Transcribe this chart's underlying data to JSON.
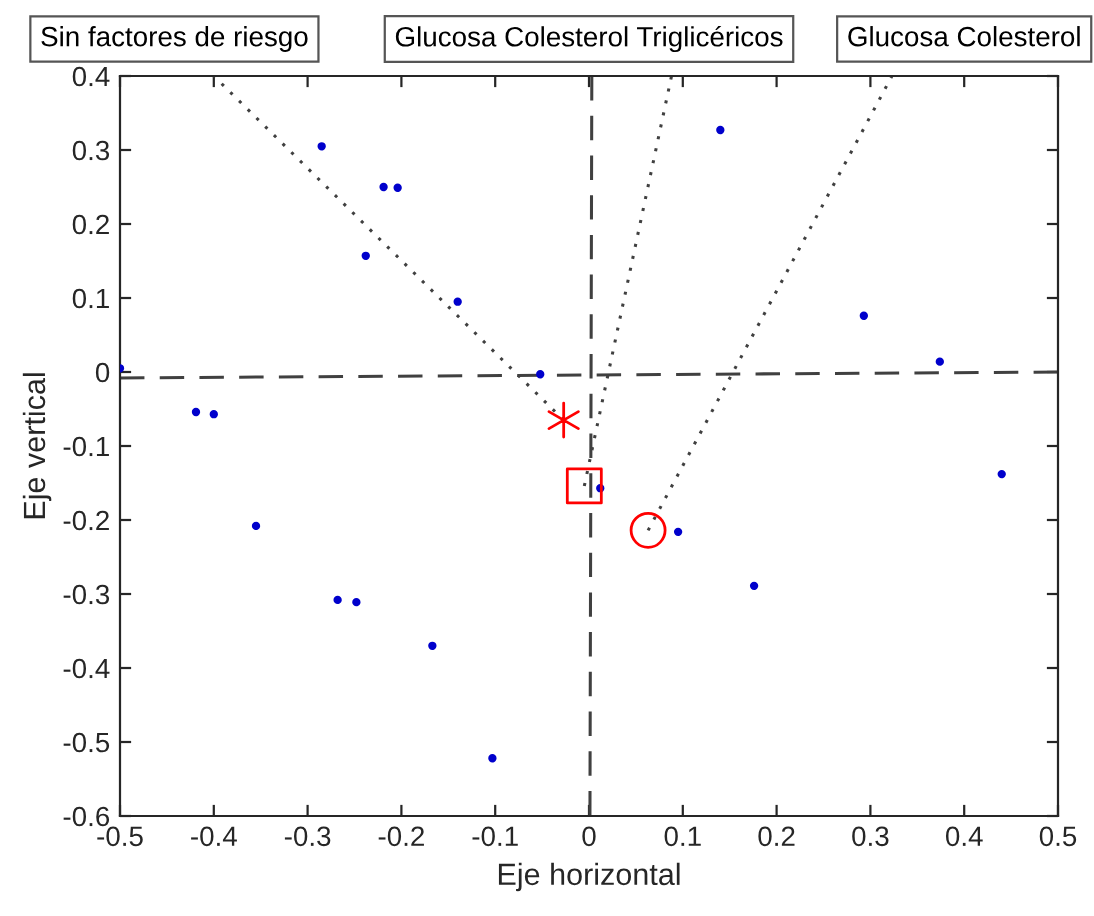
{
  "chart_data": {
    "type": "scatter",
    "xlabel": "Eje horizontal",
    "ylabel": "Eje vertical",
    "xlim": [
      -0.5,
      0.5
    ],
    "ylim": [
      -0.6,
      0.4
    ],
    "xticks": [
      -0.5,
      -0.4,
      -0.3,
      -0.2,
      -0.1,
      0,
      0.1,
      0.2,
      0.3,
      0.4,
      0.5
    ],
    "yticks": [
      -0.6,
      -0.5,
      -0.4,
      -0.3,
      -0.2,
      -0.1,
      0,
      0.1,
      0.2,
      0.3,
      0.4
    ],
    "grid": false,
    "legend": false,
    "annotations": [
      "Sin factores de riesgo",
      "Glucosa Colesterol Triglicéricos",
      "Glucosa Colesterol"
    ],
    "series": [
      {
        "type": "line",
        "color": "#404040",
        "line_style": "dashed",
        "marker": "none",
        "x": [
          -0.5,
          0.5
        ],
        "values": [
          -0.008,
          0.0
        ]
      },
      {
        "type": "line",
        "color": "#404040",
        "line_style": "dashed",
        "marker": "none",
        "x": [
          0.003,
          0.001
        ],
        "values": [
          0.4,
          -0.6
        ]
      },
      {
        "type": "line",
        "color": "#404040",
        "line_style": "dotted",
        "marker": "none",
        "x": [
          -0.027,
          -0.4
        ],
        "values": [
          -0.065,
          0.4
        ]
      },
      {
        "type": "line",
        "color": "#404040",
        "line_style": "dotted",
        "marker": "none",
        "x": [
          -0.005,
          0.088
        ],
        "values": [
          -0.154,
          0.4
        ]
      },
      {
        "type": "line",
        "color": "#404040",
        "line_style": "dotted",
        "marker": "none",
        "x": [
          0.063,
          0.323
        ],
        "values": [
          -0.214,
          0.4
        ]
      },
      {
        "color": "#0000cc",
        "marker": "circle",
        "x": [
          -0.5,
          -0.285,
          -0.219,
          -0.204,
          -0.238,
          -0.14,
          -0.052,
          0.14,
          0.293,
          0.374,
          -0.419,
          -0.4,
          -0.355,
          -0.268,
          -0.248,
          -0.167,
          -0.103,
          0.012,
          0.095,
          0.176,
          0.44
        ],
        "values": [
          0.005,
          0.305,
          0.25,
          0.249,
          0.157,
          0.095,
          -0.003,
          0.327,
          0.076,
          0.014,
          -0.054,
          -0.057,
          -0.208,
          -0.308,
          -0.311,
          -0.37,
          -0.522,
          -0.157,
          -0.216,
          -0.289,
          -0.138
        ]
      },
      {
        "color": "#ff0000",
        "marker": "cross",
        "x": [
          -0.027
        ],
        "values": [
          -0.065
        ]
      },
      {
        "color": "#ff0000",
        "marker": "square",
        "x": [
          -0.005
        ],
        "values": [
          -0.154
        ]
      },
      {
        "color": "#ff0000",
        "marker": "circle",
        "x": [
          0.063
        ],
        "values": [
          -0.214
        ]
      }
    ]
  }
}
